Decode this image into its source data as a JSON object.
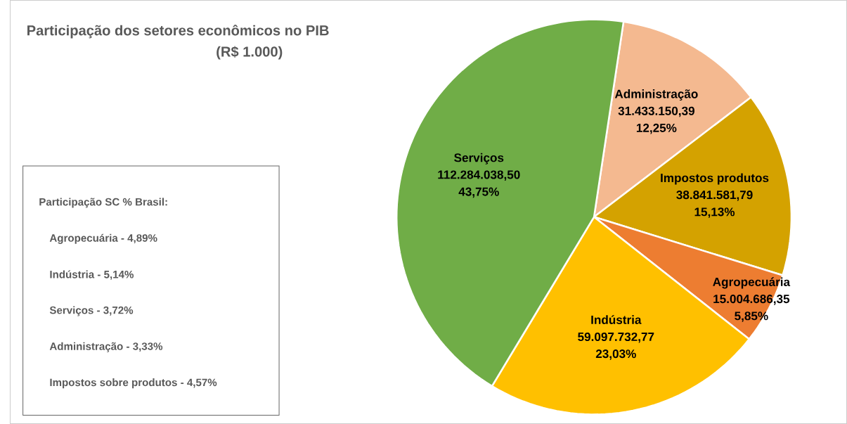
{
  "chart_data": {
    "type": "pie",
    "title": "Participação dos setores econômicos no PIB",
    "subtitle": "(R$ 1.000)",
    "categories": [
      "Administração",
      "Impostos produtos",
      "Agropecuária",
      "Indústria",
      "Serviços"
    ],
    "values": [
      31433150.39,
      38841581.79,
      15004686.35,
      59097732.77,
      112284038.5
    ],
    "colors": [
      "#f4b990",
      "#d4a200",
      "#ed7d31",
      "#ffc000",
      "#70ad47"
    ],
    "value_labels": [
      "31.433.150,39 12,25%",
      "38.841.581,79 15,13%",
      "15.004.686,35 5,85%",
      "59.097.732,77 23,03%",
      "112.284.038,50 43,75%"
    ],
    "legend": false,
    "annotations": [
      "Participação SC % Brasil:",
      "Agropecuária - 4,89%",
      "Indústria - 5,14%",
      "Serviços - 3,72%",
      "Administração - 3,33%",
      "Impostos sobre produtos - 4,57%"
    ]
  }
}
